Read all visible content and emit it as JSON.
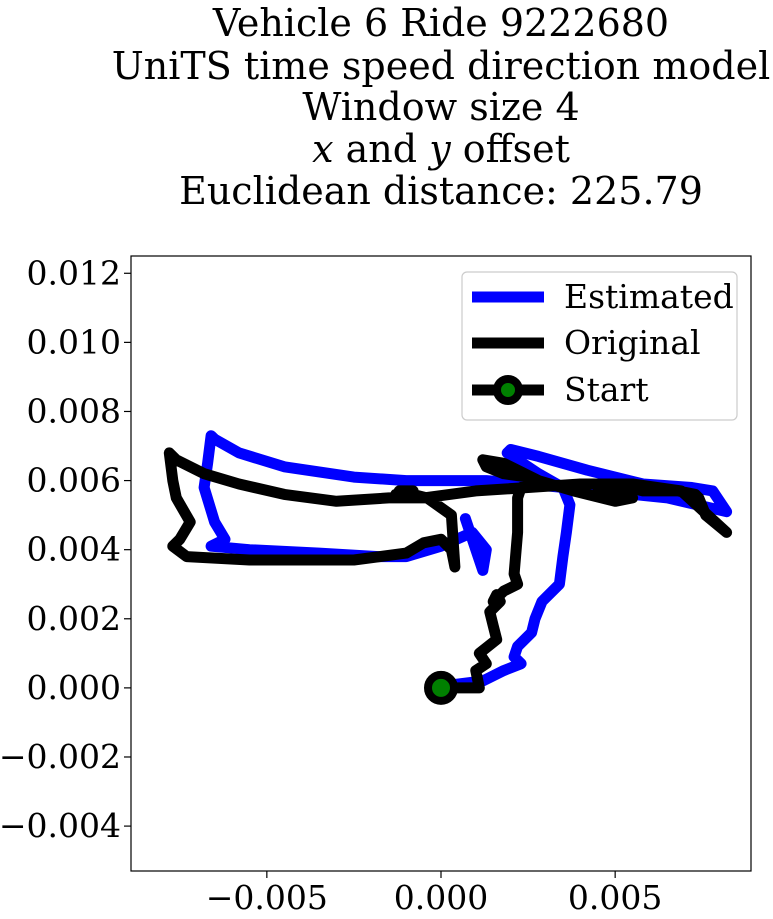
{
  "chart_data": {
    "type": "line",
    "title_lines": [
      "Vehicle 6 Ride 9222680",
      "UniTS time speed direction model",
      "Window size 4",
      "x and y offset",
      "Euclidean distance: 225.79"
    ],
    "xlim": [
      -0.0089,
      0.0089
    ],
    "ylim": [
      -0.0053,
      0.0125
    ],
    "x_ticks": [
      -0.005,
      0.0,
      0.005
    ],
    "x_tick_labels": [
      "−0.005",
      "0.000",
      "0.005"
    ],
    "y_ticks": [
      -0.004,
      -0.002,
      0.0,
      0.002,
      0.004,
      0.006,
      0.008,
      0.01,
      0.012
    ],
    "y_tick_labels": [
      "−0.004",
      "−0.002",
      "0.000",
      "0.002",
      "0.004",
      "0.006",
      "0.008",
      "0.010",
      "0.012"
    ],
    "grid": false,
    "legend_position": "top-right",
    "legend": [
      "Estimated",
      "Original",
      "Start"
    ],
    "start_point": {
      "x": 0.0,
      "y": 0.0,
      "label": "Start",
      "marker_color": "#008000",
      "ring_color": "#000000"
    },
    "series": [
      {
        "name": "Estimated",
        "color": "#0000ff",
        "x": [
          0.0,
          0.0004,
          0.0012,
          0.0018,
          0.0023,
          0.0021,
          0.0022,
          0.0026,
          0.0027,
          0.0029,
          0.0034,
          0.0035,
          0.0036,
          0.0037,
          0.0035,
          0.0028,
          0.0022,
          0.0019,
          0.002,
          0.0028,
          0.0042,
          0.0058,
          0.0072,
          0.0078,
          0.0082,
          0.0065,
          0.0045,
          0.0025,
          0.0013,
          0.0003,
          -0.001,
          -0.0025,
          -0.0045,
          -0.0058,
          -0.0065,
          -0.0066,
          -0.0067,
          -0.0068,
          -0.0065,
          -0.0062,
          -0.0066,
          -0.0055,
          -0.0035,
          -0.0018,
          -0.001,
          0.0,
          0.0009,
          0.0013,
          0.0012,
          0.0007
        ],
        "y": [
          0.0,
          0.0001,
          0.0002,
          0.0005,
          0.0007,
          0.0009,
          0.0012,
          0.0016,
          0.002,
          0.0025,
          0.003,
          0.0038,
          0.0045,
          0.0053,
          0.0058,
          0.0062,
          0.0066,
          0.0068,
          0.0069,
          0.0067,
          0.0063,
          0.0059,
          0.0058,
          0.0057,
          0.0051,
          0.0055,
          0.0057,
          0.0059,
          0.006,
          0.006,
          0.006,
          0.0061,
          0.0064,
          0.0068,
          0.0072,
          0.0073,
          0.0065,
          0.0058,
          0.0048,
          0.0043,
          0.0041,
          0.004,
          0.0039,
          0.0038,
          0.0038,
          0.0041,
          0.0045,
          0.004,
          0.0034,
          0.0049
        ]
      },
      {
        "name": "Original",
        "color": "#000000",
        "x": [
          0.0,
          0.0005,
          0.0011,
          0.001,
          0.0013,
          0.0011,
          0.0016,
          0.0015,
          0.0014,
          0.0017,
          0.0016,
          0.0015,
          0.0018,
          0.0022,
          0.0021,
          0.0022,
          0.0022,
          0.0023,
          0.0026,
          0.0028,
          0.0025,
          0.0018,
          0.0013,
          0.0012,
          0.0018,
          0.0028,
          0.0038,
          0.005,
          0.0055,
          0.0053,
          0.0045,
          0.005,
          0.0058,
          0.0068,
          0.0073,
          0.0074,
          0.0076,
          0.0082,
          0.0069,
          0.0055,
          0.004,
          0.0025,
          0.001,
          -0.0005,
          -0.0015,
          -0.003,
          -0.0045,
          -0.0058,
          -0.0068,
          -0.0076,
          -0.0078,
          -0.0077,
          -0.0076,
          -0.0072,
          -0.0075,
          -0.0077,
          -0.0073,
          -0.0055,
          -0.004,
          -0.0025,
          -0.001,
          -0.0005,
          0.0,
          0.0003,
          0.0004,
          0.0003,
          -0.0004,
          -0.0012,
          -0.0008,
          -0.0013
        ],
        "y": [
          0.0,
          0.0,
          0.0,
          0.0005,
          0.0007,
          0.001,
          0.0014,
          0.0018,
          0.0022,
          0.0025,
          0.0027,
          0.0025,
          0.0028,
          0.003,
          0.0033,
          0.0045,
          0.0055,
          0.0058,
          0.0059,
          0.006,
          0.0061,
          0.0062,
          0.0064,
          0.0066,
          0.0065,
          0.006,
          0.0057,
          0.0054,
          0.0055,
          0.0056,
          0.0058,
          0.0059,
          0.0057,
          0.0057,
          0.0056,
          0.0055,
          0.005,
          0.0045,
          0.0057,
          0.0059,
          0.0059,
          0.0058,
          0.0057,
          0.0055,
          0.0055,
          0.0054,
          0.0056,
          0.0059,
          0.0062,
          0.0066,
          0.0068,
          0.006,
          0.0055,
          0.0048,
          0.0043,
          0.0041,
          0.0038,
          0.0037,
          0.0037,
          0.0037,
          0.0039,
          0.0042,
          0.0043,
          0.004,
          0.0035,
          0.005,
          0.0055,
          0.0057,
          0.0057,
          0.0056
        ]
      }
    ]
  }
}
